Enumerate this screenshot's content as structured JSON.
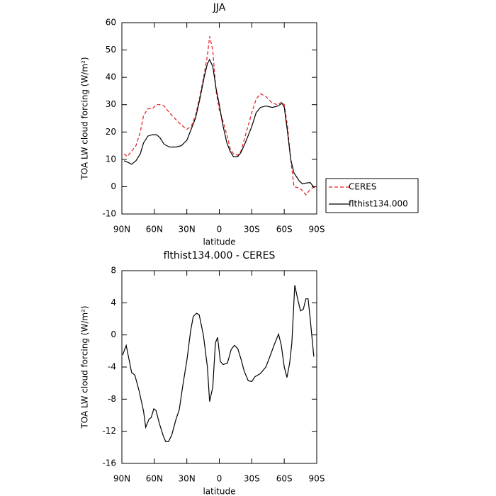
{
  "chart_data": [
    {
      "type": "line",
      "title": "JJA",
      "xlabel": "latitude",
      "ylabel": "TOA LW cloud forcing (W/m²)",
      "x": [
        88,
        85,
        81,
        77,
        73,
        70,
        66,
        62,
        58,
        55,
        51,
        46,
        40,
        35,
        30,
        26,
        22,
        18,
        14,
        11,
        9,
        6,
        3,
        0,
        -3,
        -7,
        -10,
        -13,
        -17,
        -20,
        -25,
        -30,
        -34,
        -38,
        -43,
        -49,
        -54,
        -58,
        -60,
        -63,
        -66,
        -69,
        -74,
        -77,
        -80,
        -84,
        -88
      ],
      "series": [
        {
          "name": "CERES",
          "color": "#e41a1c",
          "dash": true,
          "values": [
            12,
            11,
            13,
            15,
            20,
            26,
            28.5,
            28.5,
            30,
            30,
            29.5,
            27,
            24.5,
            22.5,
            21,
            22,
            26,
            33,
            41,
            48,
            55,
            50,
            35,
            28,
            24.5,
            19,
            14,
            12,
            11.5,
            13,
            20,
            27,
            32,
            34,
            33,
            30.5,
            30,
            31,
            30,
            22,
            10,
            0,
            -0.5,
            -1.5,
            -3,
            -1,
            0
          ]
        },
        {
          "name": "flthist134.000",
          "color": "#000000",
          "dash": false,
          "values": [
            9.5,
            9,
            8.2,
            9.5,
            12,
            16,
            18.5,
            19,
            19,
            18,
            15.5,
            14.5,
            14.5,
            15,
            17,
            21,
            25,
            32,
            40,
            45,
            46.5,
            44,
            36,
            30,
            23,
            16,
            13,
            11,
            11,
            12.5,
            17,
            22,
            27,
            29,
            29.5,
            29,
            29.5,
            30.5,
            29,
            20,
            10,
            5,
            2,
            1,
            1.3,
            1.5,
            -0.5
          ]
        }
      ],
      "xlim": [
        90,
        -90
      ],
      "xticks": [
        {
          "value": 90,
          "label": "90N"
        },
        {
          "value": 60,
          "label": "60N"
        },
        {
          "value": 30,
          "label": "30N"
        },
        0,
        {
          "value": -30,
          "label": "30S"
        },
        {
          "value": -60,
          "label": "60S"
        },
        {
          "value": -90,
          "label": "90S"
        }
      ],
      "ylim": [
        -10,
        60
      ],
      "yticks": [
        -10,
        0,
        10,
        20,
        30,
        40,
        50,
        60
      ],
      "legend": "right"
    },
    {
      "type": "line",
      "title": "flthist134.000 - CERES",
      "xlabel": "latitude",
      "ylabel": "TOA LW cloud forcing (W/m²)",
      "x": [
        89.3,
        86,
        81,
        78,
        74,
        70,
        68,
        65,
        63,
        60.5,
        58.5,
        55,
        52,
        49.5,
        47,
        44,
        40,
        37,
        33.7,
        29.8,
        26.5,
        24,
        21,
        18.6,
        14.7,
        11,
        9,
        6,
        3.6,
        1.6,
        -1,
        -3.6,
        -7.5,
        -11,
        -14,
        -17,
        -20,
        -23,
        -26.7,
        -30,
        -33,
        -38,
        -43,
        -47,
        -50.8,
        -54.7,
        -57.3,
        -60,
        -62.5,
        -65,
        -67,
        -69.7,
        -72.3,
        -75,
        -77.6,
        -80,
        -82,
        -84,
        -87.3
      ],
      "values": [
        -2.5,
        -1.3,
        -4.7,
        -5,
        -7,
        -9.5,
        -11.5,
        -10.5,
        -10.3,
        -9.2,
        -9.4,
        -11.2,
        -12.5,
        -13.3,
        -13.3,
        -12.5,
        -10.5,
        -9.3,
        -6.3,
        -3,
        0.5,
        2.3,
        2.7,
        2.5,
        0,
        -4,
        -8.3,
        -6.5,
        -1,
        -0.3,
        -3.3,
        -3.7,
        -3.5,
        -1.8,
        -1.3,
        -1.7,
        -3,
        -4.5,
        -5.7,
        -5.8,
        -5.2,
        -4.8,
        -4,
        -2.6,
        -1.2,
        0.1,
        -1.3,
        -4,
        -5.3,
        -3.5,
        -1,
        6.2,
        4.5,
        3,
        3.2,
        4.5,
        4.5,
        2,
        -2.7
      ],
      "color": "#000000",
      "xlim": [
        90,
        -90
      ],
      "xticks": [
        {
          "value": 90,
          "label": "90N"
        },
        {
          "value": 60,
          "label": "60N"
        },
        {
          "value": 30,
          "label": "30N"
        },
        0,
        {
          "value": -30,
          "label": "30S"
        },
        {
          "value": -60,
          "label": "60S"
        },
        {
          "value": -90,
          "label": "90S"
        }
      ],
      "ylim": [
        -16,
        8
      ],
      "yticks": [
        -16,
        -12,
        -8,
        -4,
        0,
        4,
        8
      ]
    }
  ]
}
